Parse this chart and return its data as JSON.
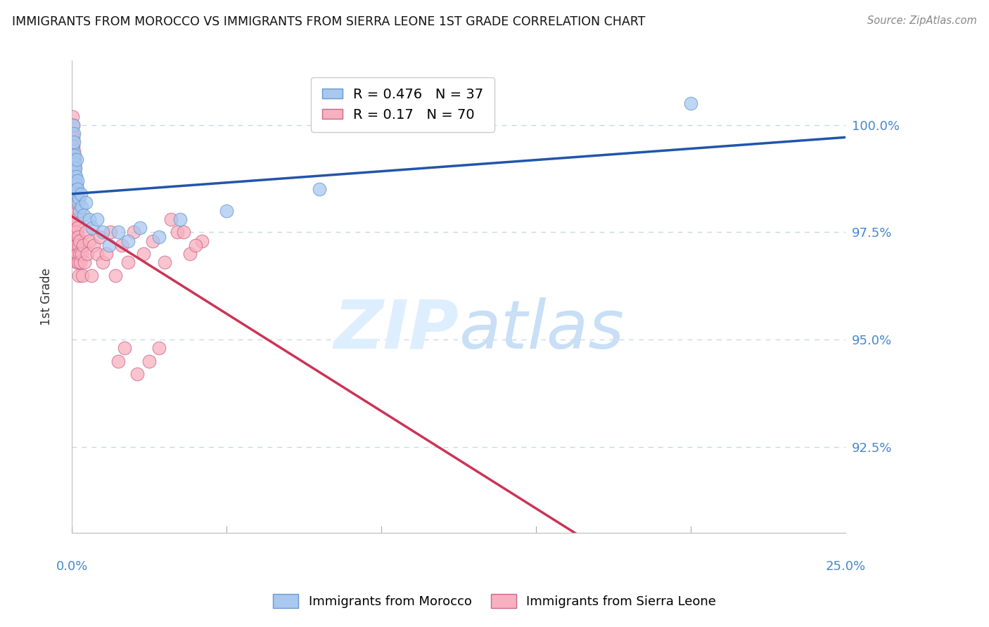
{
  "title": "IMMIGRANTS FROM MOROCCO VS IMMIGRANTS FROM SIERRA LEONE 1ST GRADE CORRELATION CHART",
  "source": "Source: ZipAtlas.com",
  "ylabel": "1st Grade",
  "y_ticks": [
    92.5,
    95.0,
    97.5,
    100.0
  ],
  "y_tick_labels": [
    "92.5%",
    "95.0%",
    "97.5%",
    "100.0%"
  ],
  "x_min": 0.0,
  "x_max": 25.0,
  "y_min": 90.5,
  "y_max": 101.5,
  "morocco_color": "#a8c8f0",
  "morocco_edge": "#6699cc",
  "sierra_leone_color": "#f8b0c0",
  "sierra_leone_edge": "#cc6688",
  "morocco_R": 0.476,
  "morocco_N": 37,
  "sierra_leone_R": 0.17,
  "sierra_leone_N": 70,
  "trend_blue": "#2255aa",
  "trend_pink": "#cc3355",
  "background": "#ffffff",
  "grid_color": "#c8d8e8",
  "watermark_color": "#ddeeff",
  "axis_color": "#4488cc",
  "morocco_x": [
    0.02,
    0.03,
    0.04,
    0.05,
    0.06,
    0.07,
    0.08,
    0.09,
    0.1,
    0.11,
    0.12,
    0.13,
    0.14,
    0.15,
    0.16,
    0.17,
    0.18,
    0.2,
    0.22,
    0.25,
    0.28,
    0.32,
    0.38,
    0.45,
    0.55,
    0.65,
    0.8,
    1.0,
    1.2,
    1.5,
    1.8,
    2.2,
    2.8,
    3.5,
    5.0,
    8.0,
    20.0
  ],
  "morocco_y": [
    99.5,
    99.2,
    100.0,
    99.8,
    99.6,
    99.3,
    98.9,
    99.1,
    98.7,
    99.0,
    98.5,
    98.8,
    99.2,
    98.6,
    98.4,
    98.7,
    98.5,
    98.2,
    98.3,
    98.0,
    98.4,
    98.1,
    97.9,
    98.2,
    97.8,
    97.6,
    97.8,
    97.5,
    97.2,
    97.5,
    97.3,
    97.6,
    97.4,
    97.8,
    98.0,
    98.5,
    100.5
  ],
  "sierra_leone_x": [
    0.01,
    0.02,
    0.03,
    0.03,
    0.04,
    0.04,
    0.05,
    0.05,
    0.06,
    0.06,
    0.07,
    0.07,
    0.08,
    0.08,
    0.09,
    0.09,
    0.1,
    0.1,
    0.11,
    0.11,
    0.12,
    0.12,
    0.13,
    0.13,
    0.14,
    0.14,
    0.15,
    0.15,
    0.16,
    0.17,
    0.18,
    0.19,
    0.2,
    0.21,
    0.22,
    0.23,
    0.25,
    0.27,
    0.3,
    0.33,
    0.36,
    0.4,
    0.45,
    0.5,
    0.55,
    0.62,
    0.7,
    0.8,
    0.9,
    1.0,
    1.1,
    1.25,
    1.4,
    1.6,
    1.8,
    2.0,
    2.3,
    2.6,
    3.0,
    3.4,
    3.8,
    4.2,
    1.5,
    1.7,
    2.1,
    2.5,
    2.8,
    3.2,
    3.6,
    4.0
  ],
  "sierra_leone_y": [
    99.8,
    100.2,
    99.5,
    100.0,
    99.3,
    99.7,
    98.8,
    99.4,
    98.5,
    99.0,
    98.3,
    99.2,
    97.8,
    98.7,
    98.0,
    99.0,
    97.5,
    98.5,
    97.8,
    98.3,
    97.2,
    98.0,
    97.5,
    98.2,
    97.0,
    97.8,
    96.8,
    97.5,
    97.2,
    97.6,
    97.0,
    97.4,
    96.8,
    97.2,
    96.5,
    97.0,
    97.3,
    96.8,
    97.0,
    96.5,
    97.2,
    96.8,
    97.5,
    97.0,
    97.3,
    96.5,
    97.2,
    97.0,
    97.4,
    96.8,
    97.0,
    97.5,
    96.5,
    97.2,
    96.8,
    97.5,
    97.0,
    97.3,
    96.8,
    97.5,
    97.0,
    97.3,
    94.5,
    94.8,
    94.2,
    94.5,
    94.8,
    97.8,
    97.5,
    97.2
  ]
}
